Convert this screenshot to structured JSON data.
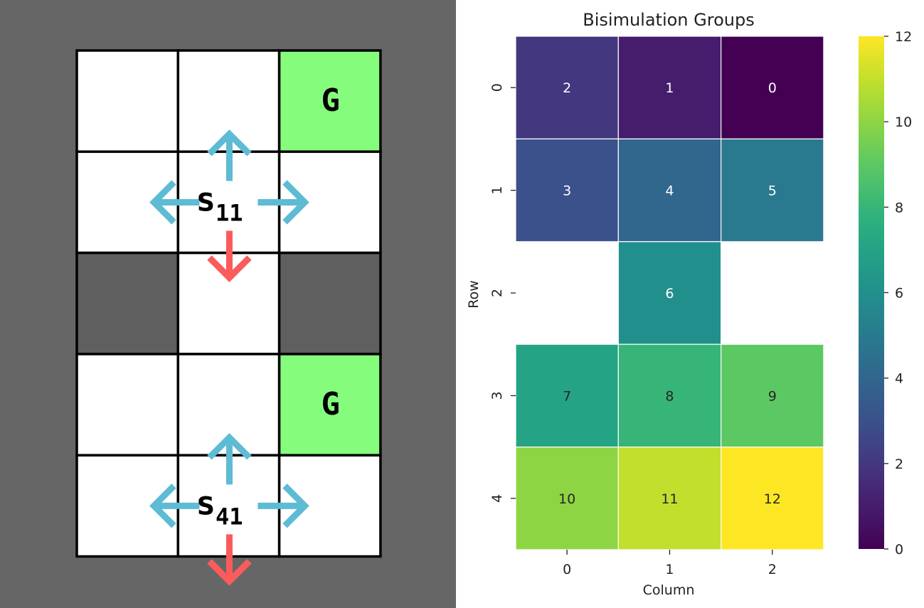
{
  "gridworld": {
    "rows": 5,
    "cols": 3,
    "background_color": "#666666",
    "wall_color": "#5f5f5f",
    "goal_color": "#86fc7d",
    "free_color": "#ffffff",
    "up_arrow_color": "#5ebbd4",
    "down_arrow_color": "#fc5b5b",
    "cells": [
      [
        "free",
        "free",
        "goal"
      ],
      [
        "free",
        "free",
        "free"
      ],
      [
        "wall",
        "free",
        "wall"
      ],
      [
        "free",
        "free",
        "goal"
      ],
      [
        "free",
        "free",
        "free"
      ]
    ],
    "goal_label": "G",
    "states": [
      {
        "row": 1,
        "col": 1,
        "symbol": "s",
        "subscript": "11"
      },
      {
        "row": 4,
        "col": 1,
        "symbol": "s",
        "subscript": "41"
      }
    ]
  },
  "chart_data": {
    "type": "heatmap",
    "title": "Bisimulation Groups",
    "xlabel": "Column",
    "ylabel": "Row",
    "x_ticks": [
      "0",
      "1",
      "2"
    ],
    "y_ticks": [
      "0",
      "1",
      "2",
      "3",
      "4"
    ],
    "values": [
      [
        2,
        1,
        0
      ],
      [
        3,
        4,
        5
      ],
      [
        null,
        6,
        null
      ],
      [
        7,
        8,
        9
      ],
      [
        10,
        11,
        12
      ]
    ],
    "vmin": 0,
    "vmax": 12,
    "colormap": "viridis",
    "colorbar_ticks": [
      0,
      2,
      4,
      6,
      8,
      10,
      12
    ]
  }
}
